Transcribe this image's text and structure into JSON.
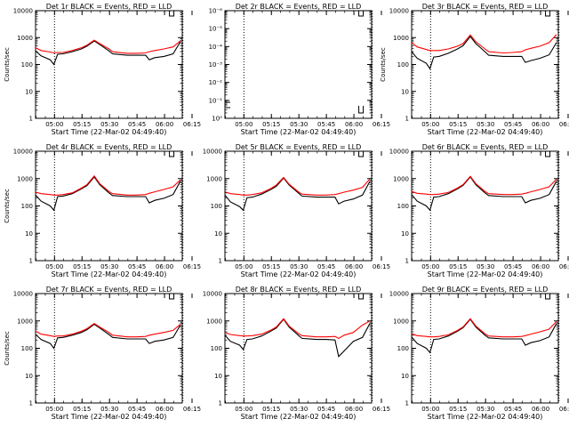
{
  "figure": {
    "x_tick_labels": [
      "05:00",
      "05:15",
      "05:30",
      "05:45",
      "06:00",
      "06:15"
    ],
    "x_axis_label": "Start Time (22-Mar-02 04:49:40)",
    "colors": {
      "events": "#000000",
      "lld": "#ff0000",
      "axes": "#000000"
    }
  },
  "chart_data": [
    {
      "type": "line",
      "title": "Det 1r BLACK = Events, RED = LLD",
      "ylabel": "Counts/sec",
      "yscale": "log",
      "ylim": [
        1,
        10000
      ],
      "y_tick_labels": [
        "1",
        "10",
        "100",
        "1000",
        "10000"
      ],
      "x_tick_labels": [
        "05:00",
        "05:15",
        "05:30",
        "05:45",
        "06:00",
        "06:15"
      ],
      "xlabel": "Start Time (22-Mar-02 04:49:40)",
      "x_minutes": [
        0,
        3,
        8,
        10,
        12,
        15,
        20,
        25,
        28,
        32,
        35,
        40,
        42,
        50,
        55,
        60,
        62,
        65,
        70,
        75,
        79
      ],
      "series": [
        {
          "name": "Events",
          "values": [
            320,
            210,
            150,
            100,
            240,
            250,
            300,
            380,
            480,
            750,
            550,
            320,
            250,
            220,
            220,
            220,
            150,
            180,
            200,
            250,
            700
          ]
        },
        {
          "name": "LLD",
          "values": [
            420,
            330,
            290,
            270,
            280,
            280,
            330,
            420,
            520,
            800,
            600,
            380,
            300,
            260,
            260,
            270,
            300,
            330,
            380,
            450,
            750
          ]
        }
      ],
      "vertical_markers": [
        "05:00",
        "06:10"
      ]
    },
    {
      "type": "line",
      "title": "Det 2r BLACK = Events, RED = LLD",
      "ylabel": "",
      "yscale": "log",
      "ylim": [
        1,
        1e-06
      ],
      "y_tick_labels": [
        "10⁰",
        "10⁻¹",
        "10⁻²",
        "10⁻³",
        "10⁻⁴",
        "10⁻⁵",
        "10⁻⁶"
      ],
      "x_tick_labels": [
        "05:00",
        "05:15",
        "05:30",
        "05:45",
        "06:00",
        "06:15"
      ],
      "xlabel": "Start Time (22-Mar-02 04:49:40)",
      "x_minutes": [],
      "series": [],
      "vertical_markers": [
        "05:00",
        "06:10"
      ]
    },
    {
      "type": "line",
      "title": "Det 3r BLACK = Events, RED = LLD",
      "ylabel": "Counts/sec",
      "yscale": "log",
      "ylim": [
        1,
        10000
      ],
      "y_tick_labels": [
        "1",
        "10",
        "100",
        "1000",
        "10000"
      ],
      "x_tick_labels": [
        "05:00",
        "05:15",
        "05:30",
        "05:45",
        "06:00",
        "06:15"
      ],
      "xlabel": "Start Time (22-Mar-02 04:49:40)",
      "x_minutes": [
        0,
        3,
        8,
        10,
        12,
        15,
        20,
        25,
        28,
        32,
        35,
        40,
        42,
        50,
        55,
        60,
        62,
        65,
        70,
        75,
        79
      ],
      "series": [
        {
          "name": "Events",
          "values": [
            300,
            170,
            110,
            70,
            190,
            200,
            260,
            380,
            500,
            1100,
            600,
            300,
            220,
            200,
            200,
            200,
            120,
            140,
            170,
            230,
            650
          ]
        },
        {
          "name": "LLD",
          "values": [
            650,
            450,
            360,
            330,
            330,
            330,
            380,
            480,
            600,
            1250,
            700,
            380,
            300,
            270,
            280,
            300,
            350,
            400,
            480,
            650,
            1300
          ]
        }
      ],
      "vertical_markers": [
        "05:00",
        "06:10"
      ]
    },
    {
      "type": "line",
      "title": "Det 4r BLACK = Events, RED = LLD",
      "ylabel": "Counts/sec",
      "yscale": "log",
      "ylim": [
        1,
        10000
      ],
      "y_tick_labels": [
        "1",
        "10",
        "100",
        "1000",
        "10000"
      ],
      "x_tick_labels": [
        "05:00",
        "05:15",
        "05:30",
        "05:45",
        "06:00",
        "06:15"
      ],
      "xlabel": "Start Time (22-Mar-02 04:49:40)",
      "x_minutes": [
        0,
        3,
        8,
        10,
        12,
        15,
        20,
        25,
        28,
        32,
        35,
        40,
        42,
        50,
        55,
        60,
        62,
        65,
        70,
        75,
        79
      ],
      "series": [
        {
          "name": "Events",
          "values": [
            250,
            150,
            100,
            70,
            220,
            230,
            280,
            420,
            550,
            1150,
            600,
            300,
            240,
            220,
            220,
            220,
            130,
            160,
            190,
            260,
            800
          ]
        },
        {
          "name": "LLD",
          "values": [
            320,
            280,
            260,
            250,
            250,
            260,
            300,
            450,
            600,
            1250,
            650,
            340,
            280,
            250,
            250,
            260,
            290,
            330,
            400,
            500,
            900
          ]
        }
      ],
      "vertical_markers": [
        "05:00",
        "06:10"
      ]
    },
    {
      "type": "line",
      "title": "Det 5r BLACK = Events, RED = LLD",
      "ylabel": "",
      "yscale": "log",
      "ylim": [
        1,
        10000
      ],
      "y_tick_labels": [
        "1",
        "10",
        "100",
        "1000",
        "10000"
      ],
      "x_tick_labels": [
        "05:00",
        "05:15",
        "05:30",
        "05:45",
        "06:00",
        "06:15"
      ],
      "xlabel": "Start Time (22-Mar-02 04:49:40)",
      "x_minutes": [
        0,
        3,
        8,
        10,
        12,
        15,
        20,
        25,
        28,
        32,
        35,
        40,
        42,
        50,
        55,
        60,
        62,
        65,
        70,
        75,
        79
      ],
      "series": [
        {
          "name": "Events",
          "values": [
            250,
            140,
            95,
            70,
            200,
            210,
            270,
            400,
            520,
            1050,
            580,
            300,
            230,
            210,
            210,
            210,
            120,
            150,
            180,
            250,
            780
          ]
        },
        {
          "name": "LLD",
          "values": [
            330,
            280,
            260,
            250,
            250,
            260,
            300,
            430,
            580,
            1100,
            620,
            330,
            270,
            250,
            250,
            260,
            280,
            320,
            380,
            480,
            950
          ]
        }
      ],
      "vertical_markers": [
        "05:00",
        "06:10"
      ]
    },
    {
      "type": "line",
      "title": "Det 6r BLACK = Events, RED = LLD",
      "ylabel": "",
      "yscale": "log",
      "ylim": [
        1,
        10000
      ],
      "y_tick_labels": [
        "1",
        "10",
        "100",
        "1000",
        "10000"
      ],
      "x_tick_labels": [
        "05:00",
        "05:15",
        "05:30",
        "05:45",
        "06:00",
        "06:15"
      ],
      "xlabel": "Start Time (22-Mar-02 04:49:40)",
      "x_minutes": [
        0,
        3,
        8,
        10,
        12,
        15,
        20,
        25,
        28,
        32,
        35,
        40,
        42,
        50,
        55,
        60,
        62,
        65,
        70,
        75,
        79
      ],
      "series": [
        {
          "name": "Events",
          "values": [
            260,
            150,
            100,
            70,
            210,
            220,
            280,
            420,
            560,
            1150,
            600,
            300,
            240,
            220,
            220,
            220,
            130,
            160,
            190,
            260,
            800
          ]
        },
        {
          "name": "LLD",
          "values": [
            340,
            290,
            270,
            260,
            260,
            270,
            310,
            450,
            600,
            1200,
            650,
            340,
            280,
            260,
            260,
            270,
            290,
            330,
            400,
            500,
            950
          ]
        }
      ],
      "vertical_markers": [
        "05:00",
        "06:10"
      ]
    },
    {
      "type": "line",
      "title": "Det 7r BLACK = Events, RED = LLD",
      "ylabel": "Counts/sec",
      "yscale": "log",
      "ylim": [
        1,
        10000
      ],
      "y_tick_labels": [
        "1",
        "10",
        "100",
        "1000",
        "10000"
      ],
      "x_tick_labels": [
        "05:00",
        "05:15",
        "05:30",
        "05:45",
        "06:00",
        "06:15"
      ],
      "xlabel": "Start Time (22-Mar-02 04:49:40)",
      "x_minutes": [
        0,
        3,
        8,
        10,
        12,
        15,
        20,
        25,
        28,
        32,
        35,
        40,
        42,
        50,
        55,
        60,
        62,
        65,
        70,
        75,
        79
      ],
      "series": [
        {
          "name": "Events",
          "values": [
            320,
            210,
            150,
            100,
            240,
            250,
            300,
            380,
            480,
            750,
            550,
            320,
            250,
            220,
            220,
            220,
            150,
            180,
            200,
            250,
            700
          ]
        },
        {
          "name": "LLD",
          "values": [
            420,
            330,
            290,
            270,
            280,
            280,
            330,
            420,
            520,
            800,
            600,
            380,
            300,
            260,
            260,
            270,
            300,
            330,
            380,
            450,
            750
          ]
        }
      ],
      "vertical_markers": [
        "05:00",
        "06:10"
      ]
    },
    {
      "type": "line",
      "title": "Det 8r BLACK = Events, RED = LLD",
      "ylabel": "",
      "yscale": "log",
      "ylim": [
        1,
        10000
      ],
      "y_tick_labels": [
        "1",
        "10",
        "100",
        "1000",
        "10000"
      ],
      "x_tick_labels": [
        "05:00",
        "05:15",
        "05:30",
        "05:45",
        "06:00",
        "06:15"
      ],
      "xlabel": "Start Time (22-Mar-02 04:49:40)",
      "x_minutes": [
        0,
        3,
        8,
        10,
        12,
        15,
        20,
        25,
        28,
        32,
        35,
        40,
        42,
        50,
        55,
        60,
        62,
        65,
        70,
        75,
        79
      ],
      "series": [
        {
          "name": "Events",
          "values": [
            300,
            180,
            130,
            90,
            210,
            220,
            280,
            420,
            550,
            1150,
            600,
            300,
            230,
            210,
            210,
            200,
            50,
            80,
            180,
            250,
            800
          ]
        },
        {
          "name": "LLD",
          "values": [
            380,
            320,
            290,
            280,
            280,
            290,
            330,
            460,
            600,
            1200,
            650,
            350,
            290,
            260,
            260,
            270,
            230,
            300,
            380,
            700,
            1000
          ]
        }
      ],
      "vertical_markers": [
        "05:00",
        "06:10"
      ]
    },
    {
      "type": "line",
      "title": "Det 9r BLACK = Events, RED = LLD",
      "ylabel": "",
      "yscale": "log",
      "ylim": [
        1,
        10000
      ],
      "y_tick_labels": [
        "1",
        "10",
        "100",
        "1000",
        "10000"
      ],
      "x_tick_labels": [
        "05:00",
        "05:15",
        "05:30",
        "05:45",
        "06:00",
        "06:15"
      ],
      "xlabel": "Start Time (22-Mar-02 04:49:40)",
      "x_minutes": [
        0,
        3,
        8,
        10,
        12,
        15,
        20,
        25,
        28,
        32,
        35,
        40,
        42,
        50,
        55,
        60,
        62,
        65,
        70,
        75,
        79
      ],
      "series": [
        {
          "name": "Events",
          "values": [
            260,
            150,
            100,
            70,
            210,
            220,
            280,
            420,
            560,
            1150,
            600,
            300,
            240,
            220,
            220,
            220,
            130,
            160,
            190,
            260,
            800
          ]
        },
        {
          "name": "LLD",
          "values": [
            340,
            290,
            270,
            260,
            260,
            270,
            310,
            450,
            600,
            1200,
            650,
            340,
            280,
            260,
            260,
            270,
            290,
            330,
            400,
            500,
            950
          ]
        }
      ],
      "vertical_markers": [
        "05:00",
        "06:10"
      ]
    }
  ]
}
